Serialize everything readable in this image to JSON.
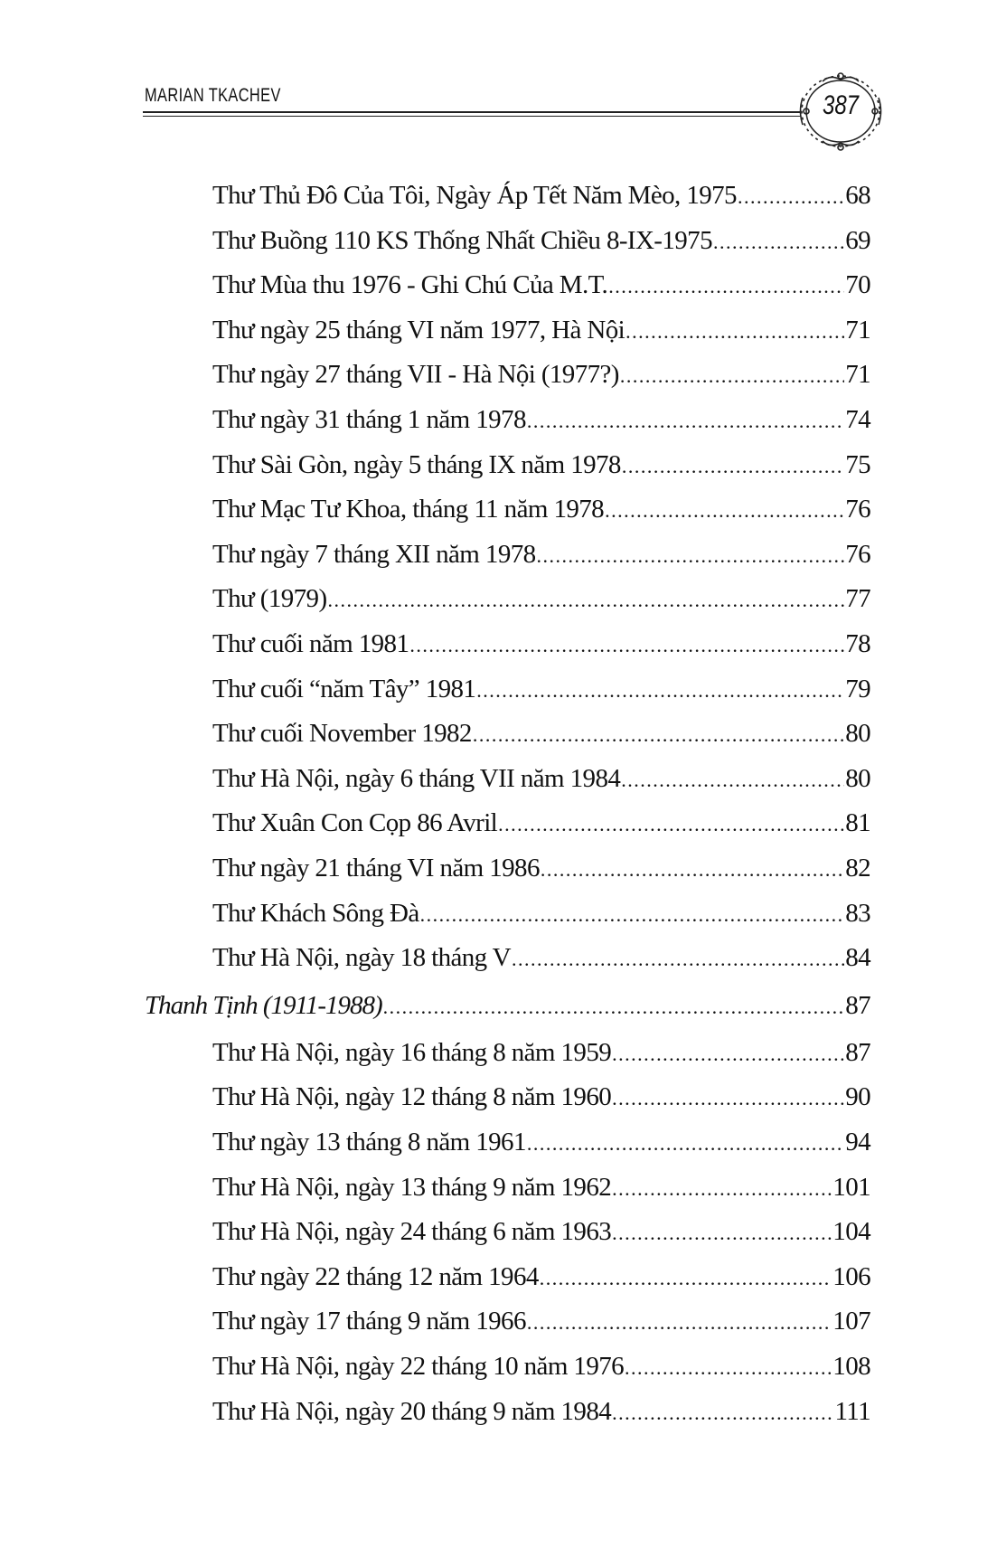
{
  "header": {
    "running_title": "MARIAN TKACHEV",
    "page_number": "387"
  },
  "toc": [
    {
      "title": "Thư Thủ Đô Của Tôi, Ngày Áp Tết Năm Mèo, 1975",
      "page": "68",
      "level": "sub"
    },
    {
      "title": "Thư Buồng 110 KS Thống Nhất Chiều 8-IX-1975",
      "page": "69",
      "level": "sub"
    },
    {
      "title": "Thư Mùa thu 1976 - Ghi Chú Của M.T.",
      "page": "70",
      "level": "sub"
    },
    {
      "title": "Thư ngày 25 tháng VI năm 1977, Hà Nội",
      "page": "71",
      "level": "sub"
    },
    {
      "title": "Thư ngày 27 tháng VII - Hà Nội (1977?)",
      "page": "71",
      "level": "sub"
    },
    {
      "title": "Thư ngày 31 tháng 1 năm 1978",
      "page": "74",
      "level": "sub"
    },
    {
      "title": "Thư Sài Gòn, ngày 5 tháng IX năm 1978",
      "page": "75",
      "level": "sub"
    },
    {
      "title": "Thư Mạc Tư Khoa, tháng 11 năm 1978",
      "page": "76",
      "level": "sub"
    },
    {
      "title": "Thư ngày 7 tháng XII năm 1978",
      "page": "76",
      "level": "sub"
    },
    {
      "title": "Thư (1979)",
      "page": "77",
      "level": "sub"
    },
    {
      "title": "Thư cuối năm 1981",
      "page": "78",
      "level": "sub"
    },
    {
      "title": "Thư cuối “năm Tây” 1981",
      "page": "79",
      "level": "sub"
    },
    {
      "title": "Thư cuối November 1982",
      "page": "80",
      "level": "sub"
    },
    {
      "title": "Thư Hà Nội, ngày 6 tháng VII năm 1984",
      "page": "80",
      "level": "sub"
    },
    {
      "title": "Thư Xuân Con Cọp 86 Avril",
      "page": "81",
      "level": "sub"
    },
    {
      "title": "Thư ngày 21 tháng VI năm 1986",
      "page": "82",
      "level": "sub"
    },
    {
      "title": "Thư Khách Sông Đà",
      "page": "83",
      "level": "sub"
    },
    {
      "title": "Thư Hà Nội, ngày 18 tháng V",
      "page": "84",
      "level": "sub"
    },
    {
      "title": "Thanh Tịnh (1911-1988)",
      "page": "87",
      "level": "sec"
    },
    {
      "title": "Thư Hà Nội, ngày 16 tháng 8 năm 1959",
      "page": "87",
      "level": "sub"
    },
    {
      "title": "Thư Hà Nội, ngày 12 tháng 8 năm 1960",
      "page": "90",
      "level": "sub"
    },
    {
      "title": "Thư ngày 13 tháng 8 năm 1961",
      "page": "94",
      "level": "sub"
    },
    {
      "title": "Thư Hà Nội, ngày 13 tháng 9 năm 1962",
      "page": "101",
      "level": "sub"
    },
    {
      "title": "Thư Hà Nội, ngày 24 tháng 6 năm 1963",
      "page": "104",
      "level": "sub"
    },
    {
      "title": "Thư ngày 22 tháng 12 năm 1964",
      "page": "106",
      "level": "sub"
    },
    {
      "title": "Thư ngày 17 tháng 9 năm 1966",
      "page": "107",
      "level": "sub"
    },
    {
      "title": "Thư Hà Nội, ngày 22 tháng 10 năm 1976",
      "page": "108",
      "level": "sub"
    },
    {
      "title": "Thư Hà Nội, ngày 20 tháng 9 năm 1984",
      "page": "111",
      "level": "sub"
    }
  ]
}
